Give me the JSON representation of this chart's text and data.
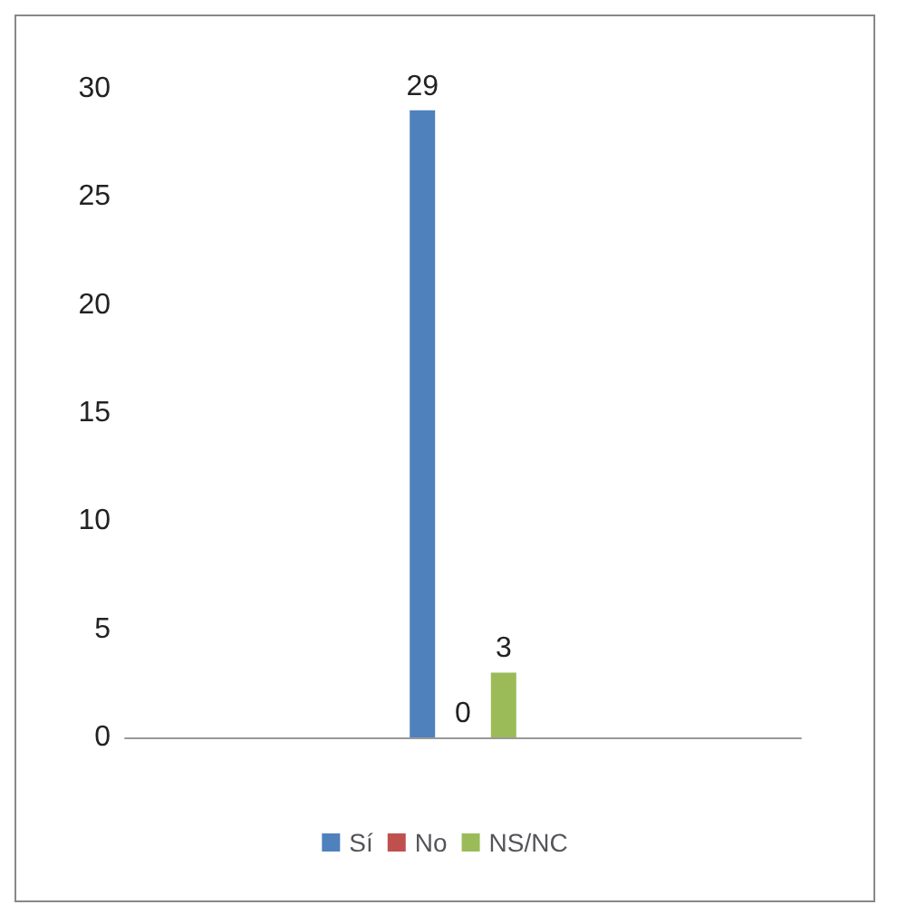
{
  "chart_data": {
    "type": "bar",
    "categories": [
      null
    ],
    "series": [
      {
        "name": "Sí",
        "color": "#4f81bd",
        "values": [
          29
        ]
      },
      {
        "name": "No",
        "color": "#c0504d",
        "values": [
          0
        ]
      },
      {
        "name": "NS/NC",
        "color": "#9bbb59",
        "values": [
          3
        ]
      }
    ],
    "ylim": [
      0,
      30
    ],
    "yticks": [
      0,
      5,
      10,
      15,
      20,
      25,
      30
    ],
    "data_labels": true,
    "legend": "bottom",
    "grid": false
  }
}
